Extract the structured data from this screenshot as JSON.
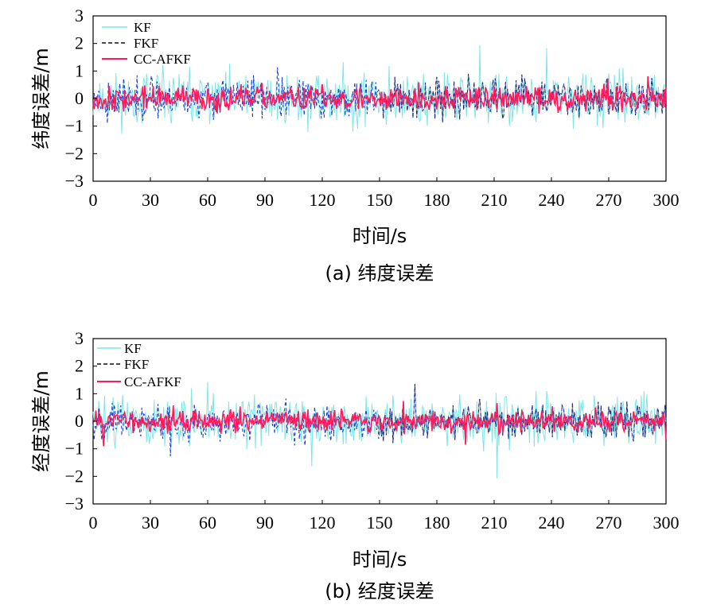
{
  "figure": {
    "colors": {
      "kf": "#7fe6e6",
      "fkf_blue": "#1a3fcc",
      "fkf_dark": "#111111",
      "ccafkf": "#ff1a5e",
      "axis": "#000000"
    }
  },
  "chart_data": [
    {
      "type": "line",
      "caption": "(a) 纬度误差",
      "xlabel": "时间/s",
      "ylabel": "纬度误差/m",
      "xlim": [
        0,
        300
      ],
      "ylim": [
        -3,
        3
      ],
      "xticks": [
        "0",
        "30",
        "60",
        "90",
        "120",
        "150",
        "180",
        "210",
        "240",
        "270",
        "300"
      ],
      "yticks": [
        "3",
        "2",
        "1",
        "0",
        "−1",
        "−2",
        "−3"
      ],
      "legend_position": "top-left",
      "grid": false,
      "series": [
        {
          "name": "KF",
          "amplitude": 0.75,
          "seed": 11
        },
        {
          "name": "FKF",
          "amplitude": 0.55,
          "seed": 23
        },
        {
          "name": "CC-AFKF",
          "amplitude": 0.35,
          "seed": 37
        }
      ]
    },
    {
      "type": "line",
      "caption": "(b) 经度误差",
      "xlabel": "时间/s",
      "ylabel": "经度误差/m",
      "xlim": [
        0,
        300
      ],
      "ylim": [
        -3,
        3
      ],
      "xticks": [
        "0",
        "30",
        "60",
        "90",
        "120",
        "150",
        "180",
        "210",
        "240",
        "270",
        "300"
      ],
      "yticks": [
        "3",
        "2",
        "1",
        "0",
        "−1",
        "−2",
        "−3"
      ],
      "legend_position": "top-left",
      "grid": false,
      "series": [
        {
          "name": "KF",
          "amplitude": 0.7,
          "seed": 51
        },
        {
          "name": "FKF",
          "amplitude": 0.5,
          "seed": 67
        },
        {
          "name": "CC-AFKF",
          "amplitude": 0.3,
          "seed": 83
        }
      ]
    }
  ]
}
